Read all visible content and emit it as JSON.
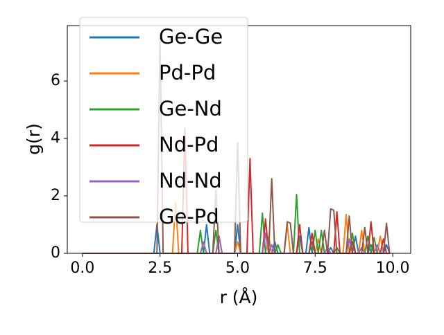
{
  "chart_data": {
    "type": "line",
    "xlabel": "r (Å)",
    "ylabel": "g(r)",
    "x": [
      0,
      0.1,
      0.2,
      0.3,
      0.4,
      0.5,
      0.6,
      0.7,
      0.8,
      0.9,
      1,
      1.1,
      1.2,
      1.3,
      1.4,
      1.5,
      1.6,
      1.7,
      1.8,
      1.9,
      2,
      2.1,
      2.2,
      2.3,
      2.4,
      2.5,
      2.6,
      2.7,
      2.8,
      2.9,
      3,
      3.1,
      3.2,
      3.3,
      3.4,
      3.5,
      3.6,
      3.7,
      3.8,
      3.9,
      4,
      4.1,
      4.2,
      4.3,
      4.4,
      4.5,
      4.6,
      4.7,
      4.8,
      4.9,
      5,
      5.1,
      5.2,
      5.3,
      5.4,
      5.5,
      5.6,
      5.7,
      5.8,
      5.9,
      6,
      6.1,
      6.2,
      6.3,
      6.4,
      6.5,
      6.6,
      6.7,
      6.8,
      6.9,
      7,
      7.1,
      7.2,
      7.3,
      7.4,
      7.5,
      7.6,
      7.7,
      7.8,
      7.9,
      8,
      8.1,
      8.2,
      8.3,
      8.4,
      8.5,
      8.6,
      8.7,
      8.8,
      8.9,
      9,
      9.1,
      9.2,
      9.3,
      9.4,
      9.5,
      9.6,
      9.7,
      9.8,
      9.9
    ],
    "series": [
      {
        "name": "Ge-Ge",
        "color": "#1f77b4",
        "values": [
          0,
          0,
          0,
          0,
          0,
          0,
          0,
          0,
          0,
          0,
          0,
          0,
          0,
          0,
          0,
          0,
          0,
          0,
          0,
          0,
          0,
          0,
          0,
          0,
          1.0,
          0,
          0,
          0,
          0,
          0,
          0,
          0,
          0,
          0,
          0,
          0,
          0,
          0,
          0,
          0,
          1.0,
          0,
          0,
          0,
          0,
          0,
          0,
          0,
          0,
          0,
          1.0,
          0,
          0,
          0,
          0,
          0,
          0,
          0,
          0,
          0,
          0,
          0,
          0.4,
          0,
          0,
          0,
          0,
          0,
          0,
          0,
          0.6,
          0,
          0,
          0.9,
          0,
          0,
          0,
          0,
          0,
          0,
          0.2,
          0,
          0,
          0,
          0,
          0,
          0,
          0,
          0.6,
          0,
          0,
          0,
          0,
          0.3,
          0,
          0,
          0,
          0,
          0.3,
          0
        ]
      },
      {
        "name": "Pd-Pd",
        "color": "#ff7f0e",
        "values": [
          0,
          0,
          0,
          0,
          0,
          0,
          0,
          0,
          0,
          0,
          0,
          0,
          0,
          0,
          0,
          0,
          0,
          0,
          0,
          0,
          0,
          0,
          0,
          0,
          0,
          0,
          0,
          0,
          0,
          0,
          1.8,
          0,
          0,
          0,
          0,
          0,
          0,
          0,
          0,
          0,
          0,
          0,
          0,
          0,
          0,
          0,
          0,
          0,
          0,
          0,
          0.4,
          0,
          0,
          0,
          0,
          0,
          0,
          0,
          0,
          0,
          0.6,
          0,
          0,
          0,
          0,
          0,
          1.0,
          0,
          0,
          0,
          0,
          0,
          0,
          0,
          0,
          0,
          0.5,
          0,
          0,
          0,
          0,
          0,
          0,
          0,
          0,
          1.35,
          0,
          0,
          0,
          0,
          0.8,
          0,
          0,
          0,
          0,
          0,
          0.6,
          0,
          0,
          0
        ]
      },
      {
        "name": "Ge-Nd",
        "color": "#2ca02c",
        "values": [
          0,
          0,
          0,
          0,
          0,
          0,
          0,
          0,
          0,
          0,
          0,
          0,
          0,
          0,
          0,
          0,
          0,
          0,
          0,
          0,
          0,
          0,
          0,
          0,
          0,
          0,
          0,
          0,
          0,
          0,
          0,
          0,
          0,
          0,
          0,
          0,
          0,
          0,
          0.8,
          0,
          0,
          0,
          0,
          0.8,
          0,
          0,
          0,
          0,
          0,
          0,
          0,
          0,
          0,
          0,
          0,
          0,
          0,
          0,
          1.4,
          0,
          0,
          0,
          0,
          0.3,
          0,
          0,
          0,
          0,
          0,
          2.05,
          0,
          0,
          0,
          0,
          0,
          0.8,
          0,
          0.8,
          0,
          0,
          0,
          0,
          0.2,
          0,
          0,
          0,
          0,
          0.7,
          0,
          0,
          0,
          0,
          0.6,
          0,
          0.55,
          0,
          0,
          0,
          0,
          0
        ]
      },
      {
        "name": "Nd-Pd",
        "color": "#d62728",
        "values": [
          0,
          0,
          0,
          0,
          0,
          0,
          0,
          0,
          0,
          0,
          0,
          0,
          0,
          0,
          0,
          0,
          0,
          0,
          0,
          0,
          0,
          0,
          0,
          0,
          0,
          0,
          0,
          0,
          0,
          0,
          0,
          0,
          0,
          4.35,
          0,
          0,
          0,
          0,
          0,
          0,
          0,
          0,
          0,
          0,
          0.6,
          0,
          0,
          0,
          0,
          0,
          0,
          0,
          0,
          0,
          3.3,
          0,
          0,
          0,
          0,
          1.2,
          0,
          0,
          0,
          0,
          0,
          0,
          0,
          0,
          0,
          0,
          1.0,
          0,
          0,
          0,
          0.7,
          0,
          0,
          0,
          0,
          0,
          0,
          0,
          1.45,
          0,
          0,
          0,
          0,
          0.4,
          0,
          0,
          0,
          0,
          0,
          1.1,
          0,
          0,
          0,
          0.5,
          0,
          0
        ]
      },
      {
        "name": "Nd-Nd",
        "color": "#9467bd",
        "values": [
          0,
          0,
          0,
          0,
          0,
          0,
          0,
          0,
          0,
          0,
          0,
          0,
          0,
          0,
          0,
          0,
          0,
          0,
          0,
          0,
          0,
          0,
          0,
          0,
          0,
          0,
          0,
          0,
          0,
          0,
          0,
          0,
          0,
          0,
          0,
          0,
          0,
          0,
          0,
          0.4,
          0,
          0,
          0,
          0,
          0.6,
          0,
          0,
          0,
          0,
          0,
          0,
          0,
          0,
          0,
          0,
          0,
          0,
          0,
          0,
          0.7,
          0,
          0.3,
          0,
          0,
          0,
          0,
          0,
          0,
          0,
          0,
          0,
          0,
          0,
          0,
          0,
          0,
          0,
          0,
          0,
          0.2,
          0,
          0,
          0,
          0,
          0,
          0,
          0.5,
          0,
          0,
          0,
          0.2,
          0,
          0,
          0,
          0,
          0.3,
          0,
          0,
          0,
          0
        ]
      },
      {
        "name": "Ge-Pd",
        "color": "#8c564b",
        "values": [
          0,
          0,
          0,
          0,
          0,
          0,
          0,
          0,
          0,
          0,
          0,
          0,
          0,
          0,
          0,
          0,
          0,
          0,
          0,
          0,
          0,
          0,
          0,
          0,
          0,
          7.5,
          0,
          0,
          0,
          0,
          0,
          0,
          0,
          0,
          0,
          0,
          0,
          0,
          0,
          0,
          0,
          0,
          0,
          2.2,
          0,
          0,
          0,
          0,
          0,
          0,
          3.85,
          0,
          0,
          0,
          0,
          0,
          0,
          0,
          0,
          0,
          0,
          2.6,
          0,
          0,
          0,
          0,
          1.1,
          1.05,
          0,
          0,
          0,
          0,
          0,
          0,
          0.4,
          0,
          0,
          0,
          0.8,
          0,
          1.55,
          1.5,
          0,
          0,
          0,
          0,
          1.3,
          0,
          0,
          0,
          0,
          0.9,
          0,
          0,
          0,
          0,
          0,
          0,
          1.05,
          0
        ]
      }
    ],
    "xlim": [
      -0.49,
      10.58
    ],
    "ylim": [
      0,
      7.93
    ],
    "xticks": [
      {
        "value": 0,
        "label": "0.0"
      },
      {
        "value": 2.5,
        "label": "2.5"
      },
      {
        "value": 5,
        "label": "5.0"
      },
      {
        "value": 7.5,
        "label": "7.5"
      },
      {
        "value": 10,
        "label": "10.0"
      }
    ],
    "yticks": [
      0,
      2,
      4,
      6
    ],
    "legend": "upper left"
  }
}
